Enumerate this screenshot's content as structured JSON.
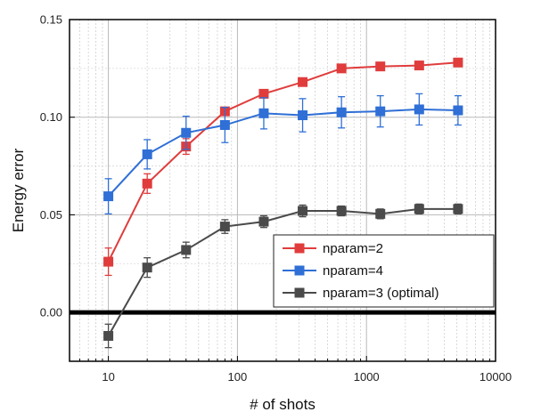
{
  "chart_data": {
    "type": "line",
    "xlabel": "# of shots",
    "ylabel": "Energy error",
    "xscale": "log",
    "xlim": [
      5,
      10000
    ],
    "ylim": [
      -0.025,
      0.15
    ],
    "xticks": [
      10,
      100,
      1000,
      10000
    ],
    "xtick_labels": [
      "10",
      "100",
      "1000",
      "10000"
    ],
    "yticks": [
      0.0,
      0.05,
      0.1,
      0.15
    ],
    "ytick_labels": [
      "0.00",
      "0.05",
      "0.10",
      "0.15"
    ],
    "grid": true,
    "zero_line": 0.0,
    "legend_position": "lower-right",
    "x": [
      10,
      20,
      40,
      80,
      160,
      320,
      640,
      1280,
      2560,
      5120
    ],
    "series": [
      {
        "name": "nparam=2",
        "color": "#e03c3c",
        "values": [
          0.026,
          0.066,
          0.085,
          0.103,
          0.112,
          0.118,
          0.125,
          0.126,
          0.1265,
          0.128
        ],
        "errors": [
          0.007,
          0.005,
          0.004,
          0.002,
          0.0015,
          0.0015,
          0.0015,
          0.0015,
          0.0015,
          0.0015
        ]
      },
      {
        "name": "nparam=4",
        "color": "#2f6fd6",
        "values": [
          0.0595,
          0.081,
          0.092,
          0.096,
          0.102,
          0.101,
          0.1025,
          0.103,
          0.104,
          0.1035
        ],
        "errors": [
          0.009,
          0.0075,
          0.0085,
          0.009,
          0.008,
          0.0085,
          0.008,
          0.008,
          0.008,
          0.0075
        ]
      },
      {
        "name": "nparam=3 (optimal)",
        "color": "#4a4a4a",
        "values": [
          -0.012,
          0.023,
          0.032,
          0.044,
          0.0465,
          0.052,
          0.052,
          0.0505,
          0.053,
          0.053
        ],
        "errors": [
          0.006,
          0.005,
          0.004,
          0.0035,
          0.003,
          0.003,
          0.0025,
          0.0025,
          0.0025,
          0.0025
        ]
      }
    ]
  }
}
